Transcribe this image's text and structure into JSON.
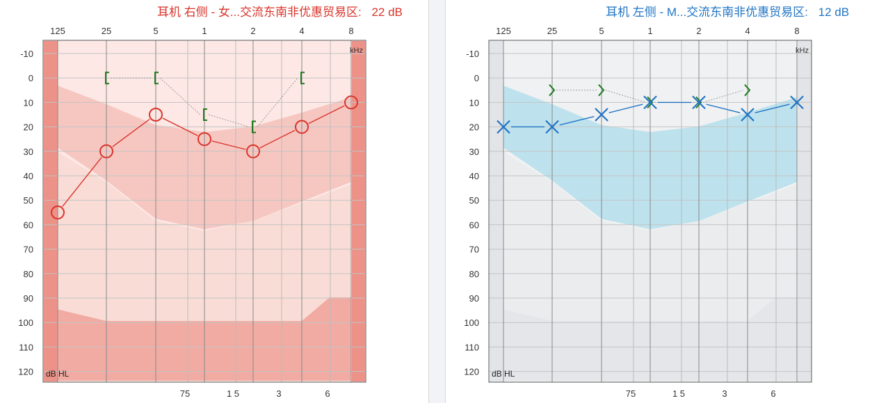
{
  "colors": {
    "right_accent": "#d9342b",
    "left_accent": "#1f74c4",
    "bone_marker": "#1f7a1f",
    "right_plot_bg": "#fde8e5",
    "left_plot_bg": "#f0f1f2"
  },
  "right_panel": {
    "title": "耳机 右侧 - 女...交流东南非优惠贸易区:",
    "pta_value": "22 dB"
  },
  "left_panel": {
    "title": "耳机 左侧 - M...交流东南非优惠贸易区:",
    "pta_value": "12 dB"
  },
  "chart_data": [
    {
      "type": "line",
      "title": "耳机 右侧",
      "ear": "right",
      "x_top_ticks": [
        "125",
        "25",
        "5",
        "1",
        "2",
        "4",
        "8"
      ],
      "x_bottom_ticks": [
        "75",
        "1 5",
        "3",
        "6"
      ],
      "x_unit_label": "kHz",
      "y_unit_label": "dB HL",
      "y_ticks": [
        -10,
        0,
        10,
        20,
        30,
        40,
        50,
        60,
        70,
        80,
        90,
        100,
        110,
        120
      ],
      "ylim": [
        -10,
        120
      ],
      "y_inverted": true,
      "frequencies_hz": [
        125,
        250,
        500,
        1000,
        2000,
        4000,
        8000
      ],
      "series": [
        {
          "marker": "O",
          "values": [
            55,
            30,
            15,
            25,
            30,
            20,
            10
          ]
        },
        {
          "marker": "[",
          "x_hz": [
            250,
            500,
            1000,
            2000,
            4000
          ],
          "values": [
            0,
            0,
            15,
            20,
            0
          ]
        }
      ]
    },
    {
      "type": "line",
      "title": "耳机 左侧",
      "ear": "left",
      "x_top_ticks": [
        "125",
        "25",
        "5",
        "1",
        "2",
        "4",
        "8"
      ],
      "x_bottom_ticks": [
        "75",
        "1 5",
        "3",
        "6"
      ],
      "x_unit_label": "kHz",
      "y_unit_label": "dB HL",
      "y_ticks": [
        -10,
        0,
        10,
        20,
        30,
        40,
        50,
        60,
        70,
        80,
        90,
        100,
        110,
        120
      ],
      "ylim": [
        -10,
        120
      ],
      "y_inverted": true,
      "frequencies_hz": [
        125,
        250,
        500,
        1000,
        2000,
        4000,
        8000
      ],
      "series": [
        {
          "marker": "X",
          "values": [
            20,
            20,
            15,
            10,
            10,
            15,
            10
          ]
        },
        {
          "marker": ">",
          "x_hz": [
            250,
            500,
            1000,
            2000,
            4000
          ],
          "values": [
            5,
            5,
            10,
            10,
            5
          ]
        }
      ]
    }
  ]
}
